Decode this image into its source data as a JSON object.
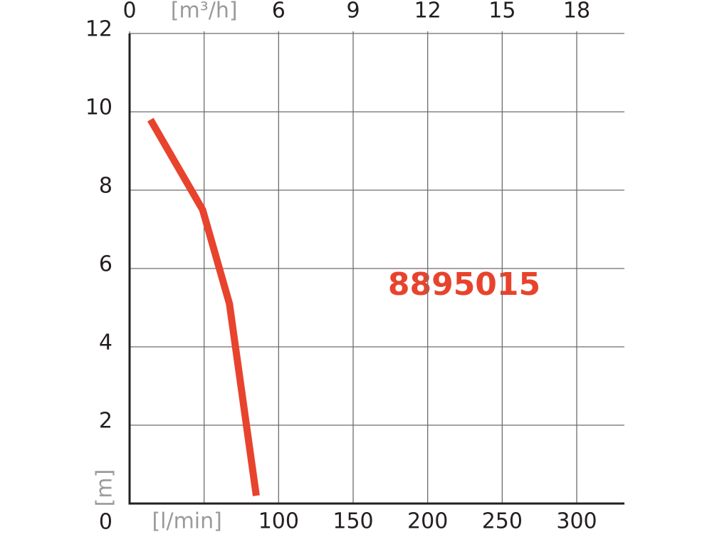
{
  "chart_data": {
    "type": "line",
    "x": [
      14,
      49,
      67,
      85
    ],
    "series": [
      {
        "name": "8895015",
        "color": "#e8432d",
        "values": [
          9.8,
          7.5,
          5.1,
          0.2
        ]
      }
    ],
    "xlim": [
      0,
      332
    ],
    "xticks": [
      {
        "value": 50,
        "label": "[l/min]"
      },
      100,
      150,
      200,
      250,
      300
    ],
    "x2lim": [
      0,
      19.92
    ],
    "x2ticks": [
      0,
      {
        "value": 3,
        "label": "[m³/h]"
      },
      6,
      9,
      12,
      15,
      18
    ],
    "ylim": [
      0,
      12
    ],
    "yticks": [
      0,
      2,
      4,
      6,
      8,
      10,
      12
    ],
    "ylabel": "[m]",
    "annotation": "8895015",
    "grid": true
  }
}
